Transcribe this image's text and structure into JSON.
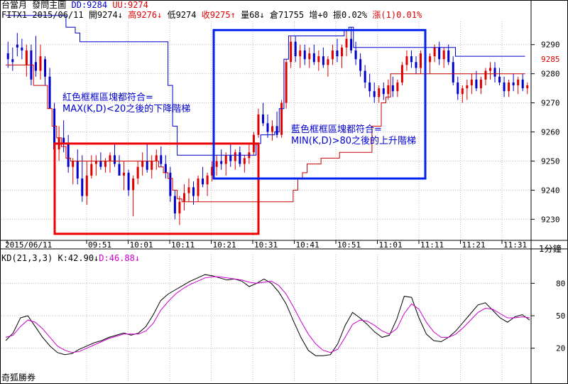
{
  "header": {
    "line1": {
      "app": "台當月",
      "panel": "發問主圖",
      "dd": "DD:9284",
      "uu": "UU:9274"
    },
    "line2": {
      "symbol": "FITX1",
      "date": "2015/06/11",
      "open": "開9274↓",
      "high": "高9276↓",
      "low": "低9274",
      "close": "收9275↑",
      "volume": "量68↓",
      "oi": "倉71755",
      "oi_change": "增+0",
      "amplitude": "振0.02%",
      "change": "漲(1)0.01%"
    }
  },
  "kd_header": {
    "label": "KD(21,3,3)",
    "k": "K:42.90↓",
    "d": "D:46.88↓"
  },
  "annotations": {
    "red_note": [
      "紅色框框區塊都符合=",
      "MAX(K,D)<20之後的下降階梯"
    ],
    "blue_note": [
      "藍色框框區塊都符合=",
      "MIN(K,D)>80之後的上升階梯"
    ]
  },
  "footer": {
    "brand": "奇狐勝券",
    "period": "1分鐘"
  },
  "colors": {
    "up": "#e00000",
    "down": "#0000cc",
    "upper_line": "#0000cc",
    "lower_line": "#cc0000",
    "k_line": "#000000",
    "d_line": "#cc00cc",
    "grid": "#bdbdbd",
    "red_box": "#ee0000",
    "blue_box": "#0022ee"
  },
  "chart_data": [
    {
      "type": "candlestick",
      "title": "",
      "ylim": [
        9223,
        9298
      ],
      "y_ticks": [
        9230,
        9240,
        9250,
        9260,
        9270,
        9280,
        9290
      ],
      "last_price_label": "9285",
      "x_tick_labels": [
        "2015/06/11",
        "09:51",
        "10:01",
        "10:11",
        "10:21",
        "10:31",
        "10:41",
        "10:51",
        "11:01",
        "11:11",
        "11:21",
        "11:31"
      ],
      "candles_ohlc": [
        [
          9287,
          9291,
          9282,
          9285
        ],
        [
          9285,
          9289,
          9281,
          9284
        ],
        [
          9290,
          9294,
          9286,
          9289
        ],
        [
          9289,
          9292,
          9285,
          9288
        ],
        [
          9283,
          9290,
          9279,
          9288
        ],
        [
          9288,
          9290,
          9276,
          9278
        ],
        [
          9284,
          9293,
          9279,
          9281
        ],
        [
          9281,
          9290,
          9278,
          9286
        ],
        [
          9285,
          9286,
          9276,
          9279
        ],
        [
          9279,
          9282,
          9268,
          9268
        ],
        [
          9268,
          9270,
          9254,
          9254
        ],
        [
          9254,
          9262,
          9250,
          9258
        ],
        [
          9258,
          9264,
          9253,
          9256
        ],
        [
          9256,
          9259,
          9246,
          9248
        ],
        [
          9248,
          9251,
          9242,
          9250
        ],
        [
          9250,
          9254,
          9242,
          9244
        ],
        [
          9244,
          9252,
          9236,
          9238
        ],
        [
          9238,
          9250,
          9235,
          9245
        ],
        [
          9245,
          9252,
          9244,
          9249
        ],
        [
          9249,
          9252,
          9245,
          9250
        ],
        [
          9250,
          9253,
          9247,
          9248
        ],
        [
          9248,
          9251,
          9246,
          9250
        ],
        [
          9250,
          9253,
          9246,
          9252
        ],
        [
          9252,
          9256,
          9248,
          9249
        ],
        [
          9249,
          9252,
          9245,
          9245
        ],
        [
          9245,
          9250,
          9240,
          9246
        ],
        [
          9246,
          9247,
          9238,
          9240
        ],
        [
          9240,
          9245,
          9231,
          9244
        ],
        [
          9244,
          9250,
          9242,
          9248
        ],
        [
          9248,
          9253,
          9245,
          9250
        ],
        [
          9250,
          9256,
          9246,
          9247
        ],
        [
          9247,
          9252,
          9244,
          9250
        ],
        [
          9250,
          9254,
          9247,
          9252
        ],
        [
          9252,
          9255,
          9248,
          9249
        ],
        [
          9249,
          9252,
          9244,
          9246
        ],
        [
          9246,
          9248,
          9236,
          9238
        ],
        [
          9238,
          9240,
          9230,
          9232
        ],
        [
          9232,
          9238,
          9228,
          9236
        ],
        [
          9236,
          9242,
          9233,
          9239
        ],
        [
          9239,
          9244,
          9236,
          9241
        ],
        [
          9241,
          9243,
          9235,
          9238
        ],
        [
          9238,
          9245,
          9236,
          9244
        ],
        [
          9244,
          9248,
          9241,
          9242
        ],
        [
          9242,
          9246,
          9238,
          9245
        ],
        [
          9245,
          9250,
          9243,
          9248
        ],
        [
          9248,
          9252,
          9245,
          9250
        ],
        [
          9250,
          9254,
          9247,
          9249
        ],
        [
          9249,
          9253,
          9245,
          9252
        ],
        [
          9252,
          9256,
          9248,
          9250
        ],
        [
          9250,
          9254,
          9247,
          9253
        ],
        [
          9253,
          9255,
          9248,
          9249
        ],
        [
          9249,
          9252,
          9246,
          9251
        ],
        [
          9251,
          9256,
          9249,
          9253
        ],
        [
          9253,
          9260,
          9252,
          9259
        ],
        [
          9259,
          9268,
          9258,
          9266
        ],
        [
          9266,
          9270,
          9262,
          9263
        ],
        [
          9263,
          9266,
          9258,
          9260
        ],
        [
          9260,
          9264,
          9257,
          9262
        ],
        [
          9262,
          9267,
          9258,
          9259
        ],
        [
          9259,
          9271,
          9258,
          9270
        ],
        [
          9270,
          9285,
          9268,
          9284
        ],
        [
          9284,
          9293,
          9282,
          9291
        ],
        [
          9291,
          9293,
          9284,
          9286
        ],
        [
          9286,
          9290,
          9282,
          9288
        ],
        [
          9288,
          9290,
          9283,
          9285
        ],
        [
          9285,
          9289,
          9282,
          9287
        ],
        [
          9287,
          9290,
          9283,
          9284
        ],
        [
          9284,
          9288,
          9281,
          9286
        ],
        [
          9286,
          9289,
          9282,
          9283
        ],
        [
          9283,
          9286,
          9279,
          9285
        ],
        [
          9285,
          9290,
          9283,
          9288
        ],
        [
          9288,
          9292,
          9284,
          9286
        ],
        [
          9286,
          9290,
          9282,
          9289
        ],
        [
          9289,
          9295,
          9286,
          9292
        ],
        [
          9292,
          9296,
          9287,
          9288
        ],
        [
          9288,
          9291,
          9283,
          9285
        ],
        [
          9285,
          9287,
          9279,
          9281
        ],
        [
          9281,
          9283,
          9275,
          9277
        ],
        [
          9277,
          9280,
          9272,
          9274
        ],
        [
          9274,
          9277,
          9270,
          9272
        ],
        [
          9272,
          9276,
          9270,
          9275
        ],
        [
          9275,
          9277,
          9271,
          9273
        ],
        [
          9273,
          9278,
          9271,
          9276
        ],
        [
          9276,
          9279,
          9272,
          9274
        ],
        [
          9274,
          9278,
          9272,
          9277
        ],
        [
          9277,
          9284,
          9276,
          9283
        ],
        [
          9283,
          9288,
          9281,
          9286
        ],
        [
          9286,
          9288,
          9282,
          9284
        ],
        [
          9284,
          9286,
          9280,
          9282
        ],
        [
          9282,
          9288,
          9280,
          9287
        ],
        [
          9287,
          9290,
          9282,
          9284
        ],
        [
          9284,
          9287,
          9280,
          9286
        ],
        [
          9286,
          9290,
          9284,
          9289
        ],
        [
          9289,
          9291,
          9283,
          9285
        ],
        [
          9285,
          9289,
          9282,
          9288
        ],
        [
          9288,
          9290,
          9283,
          9284
        ],
        [
          9284,
          9286,
          9276,
          9277
        ],
        [
          9277,
          9279,
          9271,
          9273
        ],
        [
          9273,
          9276,
          9270,
          9275
        ],
        [
          9275,
          9278,
          9271,
          9276
        ],
        [
          9276,
          9280,
          9273,
          9278
        ],
        [
          9278,
          9281,
          9274,
          9275
        ],
        [
          9275,
          9279,
          9273,
          9278
        ],
        [
          9278,
          9282,
          9276,
          9281
        ],
        [
          9281,
          9284,
          9278,
          9282
        ],
        [
          9282,
          9284,
          9277,
          9279
        ],
        [
          9279,
          9282,
          9276,
          9277
        ],
        [
          9277,
          9279,
          9272,
          9274
        ],
        [
          9274,
          9278,
          9272,
          9277
        ],
        [
          9277,
          9280,
          9274,
          9276
        ],
        [
          9276,
          9279,
          9273,
          9278
        ],
        [
          9278,
          9280,
          9274,
          9275
        ],
        [
          9275,
          9277,
          9273,
          9276
        ]
      ],
      "upper_line": [
        9300,
        9300,
        9300,
        9300,
        9300,
        9300,
        9300,
        9300,
        9300,
        9300,
        9300,
        9300,
        9300,
        9296,
        9296,
        9294,
        9291,
        9291,
        9291,
        9291,
        9291,
        9291,
        9291,
        9291,
        9291,
        9291,
        9291,
        9291,
        9291,
        9291,
        9291,
        9291,
        9291,
        9291,
        9291,
        9276,
        9262,
        9252,
        9252,
        9252,
        9252,
        9252,
        9252,
        9252,
        9252,
        9252,
        9252,
        9252,
        9252,
        9252,
        9252,
        9252,
        9252,
        9252,
        9256,
        9259,
        9259,
        9259,
        9260,
        9268,
        9285,
        9293,
        9293,
        9293,
        9293,
        9293,
        9293,
        9293,
        9293,
        9293,
        9293,
        9293,
        9293,
        9295,
        9296,
        9289,
        9289,
        9289,
        9289,
        9289,
        9289,
        9289,
        9289,
        9289,
        9289,
        9289,
        9289,
        9289,
        9289,
        9289,
        9289,
        9289,
        9289,
        9289,
        9289,
        9289,
        9289,
        9286,
        9286,
        9286,
        9286,
        9286,
        9286,
        9286,
        9286,
        9286,
        9286,
        9286,
        9286,
        9286,
        9286,
        9286
      ],
      "lower_line": [
        9283,
        9283,
        9283,
        9283,
        9283,
        9283,
        9276,
        9276,
        9276,
        9268,
        9262,
        9258,
        9255,
        9251,
        9250,
        9250,
        9250,
        9250,
        9250,
        9250,
        9250,
        9250,
        9250,
        9250,
        9250,
        9250,
        9250,
        9250,
        9250,
        9250,
        9250,
        9250,
        9250,
        9248,
        9246,
        9244,
        9240,
        9237,
        9236,
        9236,
        9236,
        9236,
        9236,
        9236,
        9236,
        9236,
        9236,
        9236,
        9236,
        9236,
        9236,
        9236,
        9236,
        9236,
        9236,
        9236,
        9236,
        9236,
        9236,
        9236,
        9236,
        9236,
        9240,
        9244,
        9246,
        9249,
        9249,
        9249,
        9251,
        9251,
        9251,
        9251,
        9253,
        9253,
        9253,
        9253,
        9253,
        9253,
        9253,
        9262,
        9262,
        9270,
        9272,
        9280,
        9280,
        9280,
        9280,
        9280,
        9280,
        9280,
        9280,
        9280,
        9280,
        9280,
        9280,
        9280,
        9280,
        9280,
        9280,
        9280,
        9280,
        9280,
        9280,
        9280,
        9280,
        9280,
        9280,
        9280,
        9280,
        9280,
        9280,
        9280
      ]
    },
    {
      "type": "line",
      "title": "",
      "ylim": [
        0,
        100
      ],
      "y_ticks": [
        20,
        50,
        80
      ],
      "series": [
        {
          "name": "K",
          "values": [
            27,
            34,
            48,
            50,
            40,
            30,
            22,
            16,
            14,
            15,
            19,
            22,
            25,
            27,
            30,
            32,
            34,
            32,
            34,
            40,
            51,
            64,
            70,
            74,
            78,
            82,
            85,
            88,
            87,
            85,
            83,
            84,
            82,
            77,
            80,
            84,
            80,
            72,
            61,
            45,
            30,
            18,
            13,
            13,
            14,
            24,
            41,
            53,
            48,
            42,
            35,
            30,
            32,
            47,
            68,
            67,
            48,
            33,
            27,
            26,
            30,
            36,
            44,
            52,
            60,
            62,
            55,
            48,
            44,
            49,
            51,
            46
          ]
        },
        {
          "name": "D",
          "values": [
            30,
            32,
            40,
            46,
            44,
            38,
            30,
            22,
            18,
            16,
            17,
            20,
            23,
            26,
            29,
            31,
            33,
            33,
            33,
            36,
            43,
            55,
            63,
            70,
            75,
            79,
            82,
            85,
            86,
            86,
            85,
            84,
            83,
            81,
            80,
            81,
            82,
            78,
            70,
            58,
            45,
            33,
            24,
            18,
            16,
            19,
            30,
            42,
            46,
            45,
            41,
            36,
            33,
            38,
            52,
            61,
            56,
            44,
            35,
            30,
            30,
            33,
            39,
            46,
            53,
            57,
            56,
            52,
            48,
            48,
            49,
            48
          ]
        }
      ]
    }
  ]
}
